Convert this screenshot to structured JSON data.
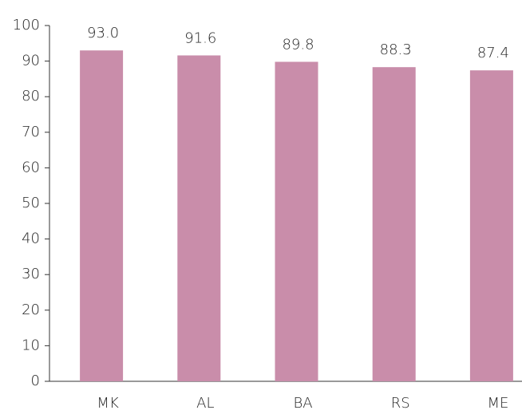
{
  "chart_data": {
    "type": "bar",
    "categories": [
      "MK",
      "AL",
      "BA",
      "RS",
      "ME"
    ],
    "values": [
      93.0,
      91.6,
      89.8,
      88.3,
      87.4
    ],
    "value_labels": [
      "93.0",
      "91.6",
      "89.8",
      "88.3",
      "87.4"
    ],
    "color": "#c98daa",
    "ylim": [
      0,
      100
    ],
    "yticks": [
      0,
      10,
      20,
      30,
      40,
      50,
      60,
      70,
      80,
      90,
      100
    ],
    "grid": false
  }
}
